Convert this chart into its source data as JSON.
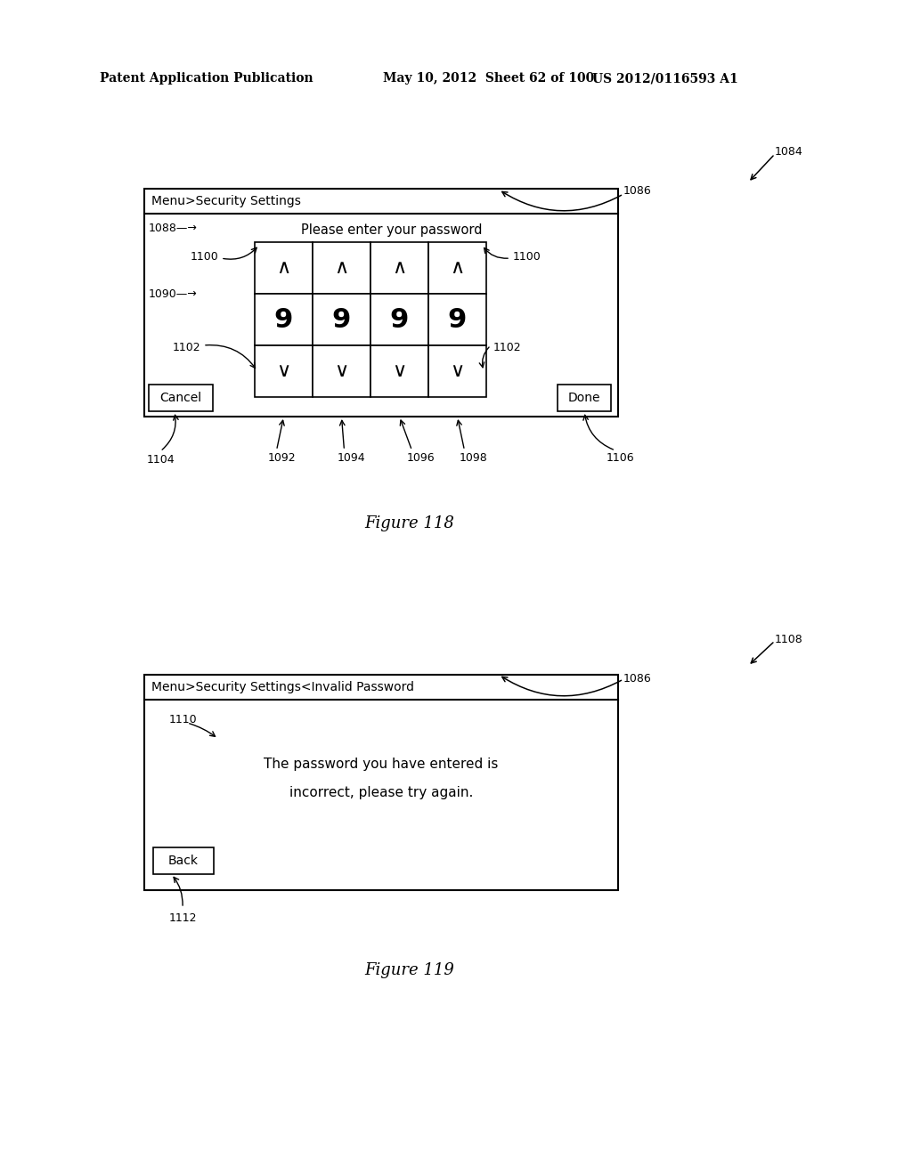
{
  "bg_color": "#ffffff",
  "header_text_left": "Patent Application Publication",
  "header_text_mid": "May 10, 2012  Sheet 62 of 100",
  "header_text_right": "US 2012/0116593 A1",
  "fig118_title": "Figure 118",
  "fig119_title": "Figure 119",
  "fig118_title_bar": "Menu>Security Settings",
  "fig118_prompt": "Please enter your password",
  "fig118_digits": [
    "9",
    "9",
    "9",
    "9"
  ],
  "fig119_title_bar": "Menu>Security Settings<Invalid Password",
  "fig119_msg_line1": "The password you have entered is",
  "fig119_msg_line2": "incorrect, please try again.",
  "label_fs": 9,
  "header_fs": 10
}
